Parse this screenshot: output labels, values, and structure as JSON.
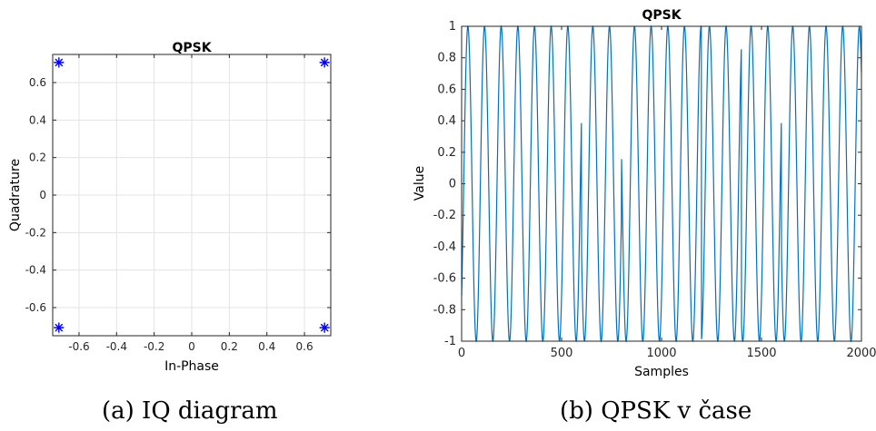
{
  "chart_data": [
    {
      "type": "scatter",
      "title": "QPSK",
      "xlabel": "In-Phase",
      "ylabel": "Quadrature",
      "xlim": [
        -0.74,
        0.74
      ],
      "ylim": [
        -0.75,
        0.75
      ],
      "xticks": [
        -0.6,
        -0.4,
        -0.2,
        0,
        0.2,
        0.4,
        0.6
      ],
      "xtick_labels": [
        "-0.6",
        "-0.4",
        "-0.2",
        "0",
        "0.2",
        "0.4",
        "0.6"
      ],
      "yticks": [
        -0.6,
        -0.4,
        -0.2,
        0,
        0.2,
        0.4,
        0.6
      ],
      "ytick_labels": [
        "-0.6",
        "-0.4",
        "-0.2",
        "0",
        "0.2",
        "0.4",
        "0.6"
      ],
      "grid": true,
      "marker": "*",
      "color": "#0000ff",
      "points": [
        {
          "x": -0.707,
          "y": 0.707
        },
        {
          "x": 0.707,
          "y": 0.707
        },
        {
          "x": -0.707,
          "y": -0.707
        },
        {
          "x": 0.707,
          "y": -0.707
        }
      ]
    },
    {
      "type": "line",
      "title": "QPSK",
      "xlabel": "Samples",
      "ylabel": "Value",
      "xlim": [
        0,
        2000
      ],
      "ylim": [
        -1,
        1
      ],
      "xticks": [
        0,
        500,
        1000,
        1500,
        2000
      ],
      "xtick_labels": [
        "0",
        "500",
        "1000",
        "1500",
        "2000"
      ],
      "yticks": [
        -1,
        -0.8,
        -0.6,
        -0.4,
        -0.2,
        0,
        0.2,
        0.4,
        0.6,
        0.8,
        1
      ],
      "ytick_labels": [
        "-1",
        "-0.8",
        "-0.6",
        "-0.4",
        "-0.2",
        "0",
        "0.2",
        "0.4",
        "0.6",
        "0.8",
        "1"
      ],
      "grid": false,
      "color": "#0072bd",
      "signal": {
        "samples": 2000,
        "cycles": 24,
        "symbol_length": 200,
        "symbol_phases_deg": [
          -45,
          -45,
          -45,
          135,
          -45,
          -45,
          135,
          -45,
          135,
          135
        ]
      }
    }
  ],
  "captions": {
    "a": "(a) IQ diagram",
    "b": "(b) QPSK v čase"
  }
}
